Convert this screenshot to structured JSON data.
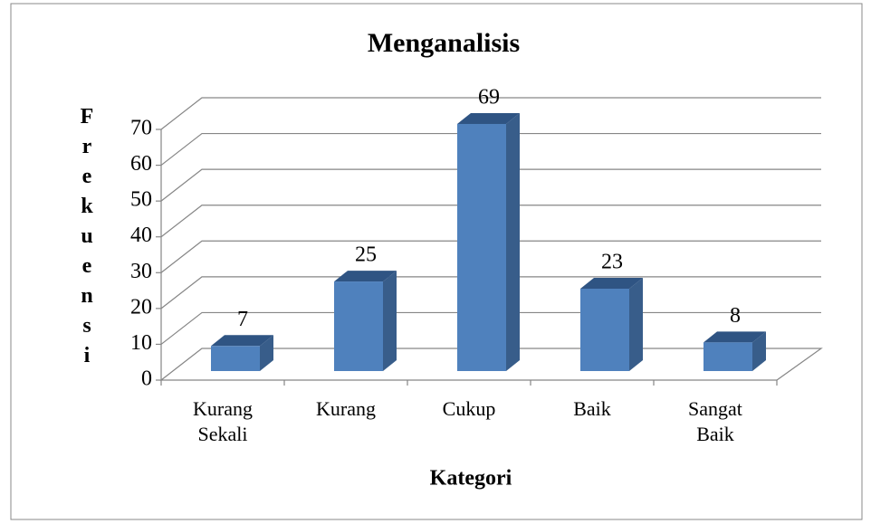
{
  "chart_data": {
    "type": "bar3d",
    "title": "Menganalisis",
    "categories": [
      "Kurang Sekali",
      "Kurang",
      "Cukup",
      "Baik",
      "Sangat Baik"
    ],
    "values": [
      7,
      25,
      69,
      23,
      8
    ],
    "color": "#4f81bd",
    "ylim": [
      0,
      70
    ],
    "yticks": [
      0,
      10,
      20,
      30,
      40,
      50,
      60,
      70
    ],
    "ylabel": "Frekuensi",
    "xlabel": "Kategori",
    "grid": true
  }
}
